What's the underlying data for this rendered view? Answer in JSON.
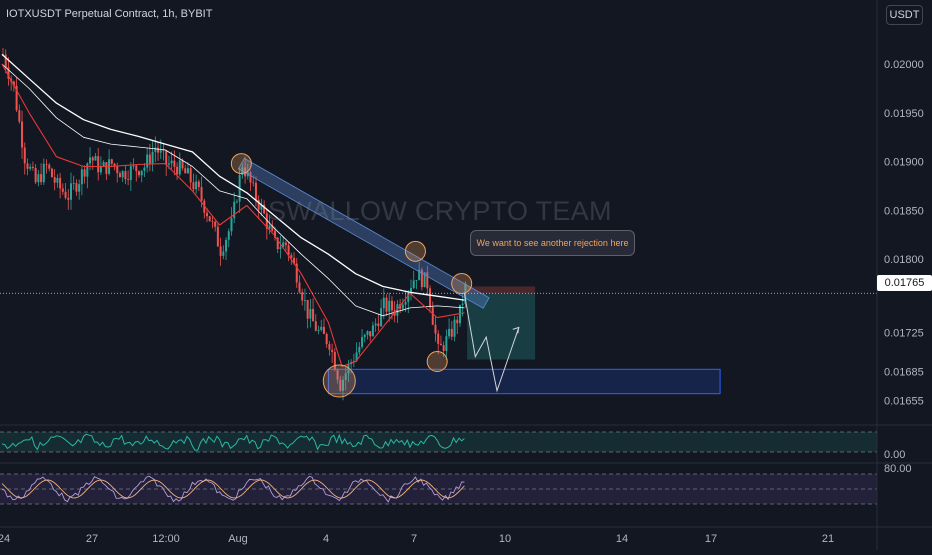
{
  "header": {
    "symbol_title": "IOTXUSDT Perpetual Contract, 1h, BYBIT",
    "currency_label": "USDT"
  },
  "watermark": "SWALLOW CRYPTO TEAM",
  "callout": "We want to see another rejection here",
  "current_price": "0.01765",
  "colors": {
    "background": "#131722",
    "candle_up": "#26a69a",
    "candle_down": "#ef5350",
    "ema_fast": "#e53935",
    "ma_slow": "#ffffff",
    "trendline": "#5b8ad6",
    "support_zone": "#2962ff",
    "marker": "#f0a35e",
    "rsi_line": "#2bb6a0",
    "stoch_k": "#b39ddb",
    "stoch_d": "#f0b27a"
  },
  "chart_data": [
    {
      "type": "candlestick",
      "title": "",
      "y_axis": {
        "range": [
          0.01635,
          0.02035
        ],
        "ticks": [
          "0.02000",
          "0.01950",
          "0.01900",
          "0.01850",
          "0.01800",
          "0.01725",
          "0.01685",
          "0.01655"
        ]
      },
      "x_axis": {
        "ticks": [
          "24",
          "27",
          "12:00",
          "Aug",
          "4",
          "7",
          "10",
          "14",
          "17",
          "21"
        ]
      },
      "price_path": [
        [
          0,
          0.0201
        ],
        [
          4,
          0.01975
        ],
        [
          8,
          0.01905
        ],
        [
          12,
          0.01878
        ],
        [
          16,
          0.01895
        ],
        [
          20,
          0.01875
        ],
        [
          24,
          0.01865
        ],
        [
          28,
          0.01882
        ],
        [
          32,
          0.01905
        ],
        [
          36,
          0.01892
        ],
        [
          40,
          0.01898
        ],
        [
          44,
          0.01888
        ],
        [
          48,
          0.01892
        ],
        [
          52,
          0.01895
        ],
        [
          56,
          0.01915
        ],
        [
          60,
          0.01898
        ],
        [
          64,
          0.01895
        ],
        [
          68,
          0.01885
        ],
        [
          72,
          0.01868
        ],
        [
          76,
          0.01842
        ],
        [
          80,
          0.0181
        ],
        [
          84,
          0.01835
        ],
        [
          88,
          0.01898
        ],
        [
          92,
          0.0187
        ],
        [
          96,
          0.01845
        ],
        [
          100,
          0.01815
        ],
        [
          104,
          0.01815
        ],
        [
          108,
          0.01785
        ],
        [
          112,
          0.01745
        ],
        [
          116,
          0.01725
        ],
        [
          120,
          0.01715
        ],
        [
          124,
          0.01672
        ],
        [
          128,
          0.01695
        ],
        [
          132,
          0.01715
        ],
        [
          136,
          0.01728
        ],
        [
          140,
          0.01752
        ],
        [
          144,
          0.01748
        ],
        [
          148,
          0.01765
        ],
        [
          152,
          0.01785
        ],
        [
          156,
          0.01775
        ],
        [
          160,
          0.01705
        ],
        [
          164,
          0.0172
        ],
        [
          168,
          0.01745
        ],
        [
          170,
          0.0177
        ]
      ],
      "ema_fast": [
        [
          0,
          0.02
        ],
        [
          10,
          0.0195
        ],
        [
          20,
          0.01905
        ],
        [
          30,
          0.01895
        ],
        [
          40,
          0.01895
        ],
        [
          50,
          0.01897
        ],
        [
          60,
          0.01898
        ],
        [
          70,
          0.0187
        ],
        [
          80,
          0.01835
        ],
        [
          90,
          0.01855
        ],
        [
          100,
          0.01825
        ],
        [
          110,
          0.01785
        ],
        [
          120,
          0.01735
        ],
        [
          125,
          0.0169
        ],
        [
          130,
          0.01695
        ],
        [
          140,
          0.0173
        ],
        [
          150,
          0.01765
        ],
        [
          160,
          0.0174
        ],
        [
          170,
          0.01745
        ]
      ],
      "ma_slow": [
        [
          0,
          0.0201
        ],
        [
          10,
          0.01985
        ],
        [
          20,
          0.0196
        ],
        [
          30,
          0.01943
        ],
        [
          40,
          0.01933
        ],
        [
          50,
          0.01926
        ],
        [
          60,
          0.01918
        ],
        [
          70,
          0.0191
        ],
        [
          80,
          0.01885
        ],
        [
          90,
          0.01868
        ],
        [
          100,
          0.01845
        ],
        [
          110,
          0.01822
        ],
        [
          120,
          0.01805
        ],
        [
          130,
          0.01785
        ],
        [
          140,
          0.01772
        ],
        [
          150,
          0.01766
        ],
        [
          160,
          0.01762
        ],
        [
          170,
          0.01758
        ]
      ],
      "ma_mid": [
        [
          0,
          0.02
        ],
        [
          10,
          0.01975
        ],
        [
          20,
          0.01945
        ],
        [
          30,
          0.01925
        ],
        [
          40,
          0.01918
        ],
        [
          50,
          0.01915
        ],
        [
          60,
          0.01912
        ],
        [
          70,
          0.01895
        ],
        [
          80,
          0.0187
        ],
        [
          90,
          0.01862
        ],
        [
          100,
          0.01832
        ],
        [
          110,
          0.01805
        ],
        [
          120,
          0.0178
        ],
        [
          130,
          0.01752
        ],
        [
          140,
          0.01742
        ],
        [
          150,
          0.0175
        ],
        [
          160,
          0.01752
        ],
        [
          170,
          0.0175
        ]
      ],
      "drawings": {
        "trendline": [
          [
            88,
            0.01898
          ],
          [
            178,
            0.01755
          ]
        ],
        "support_zone": [
          0.01662,
          0.01687
        ],
        "position_target": [
          0.01765,
          0.01697
        ],
        "position_stop": [
          0.01765,
          0.01772
        ],
        "projected_path": [
          [
            170,
            0.01765
          ],
          [
            174,
            0.017
          ],
          [
            178,
            0.0172
          ],
          [
            182,
            0.01665
          ],
          [
            190,
            0.0173
          ]
        ],
        "markers": [
          [
            88,
            0.01898
          ],
          [
            124,
            0.01675
          ],
          [
            152,
            0.01808
          ],
          [
            160,
            0.01695
          ],
          [
            169,
            0.01775
          ]
        ]
      }
    },
    {
      "type": "line",
      "title": "",
      "y_axis": {
        "ticks": [
          "0.00"
        ]
      },
      "series": "rsi-oscillator"
    },
    {
      "type": "line",
      "title": "",
      "y_axis": {
        "ticks": [
          "80.00"
        ]
      },
      "series": "stochastic-oscillator"
    }
  ]
}
